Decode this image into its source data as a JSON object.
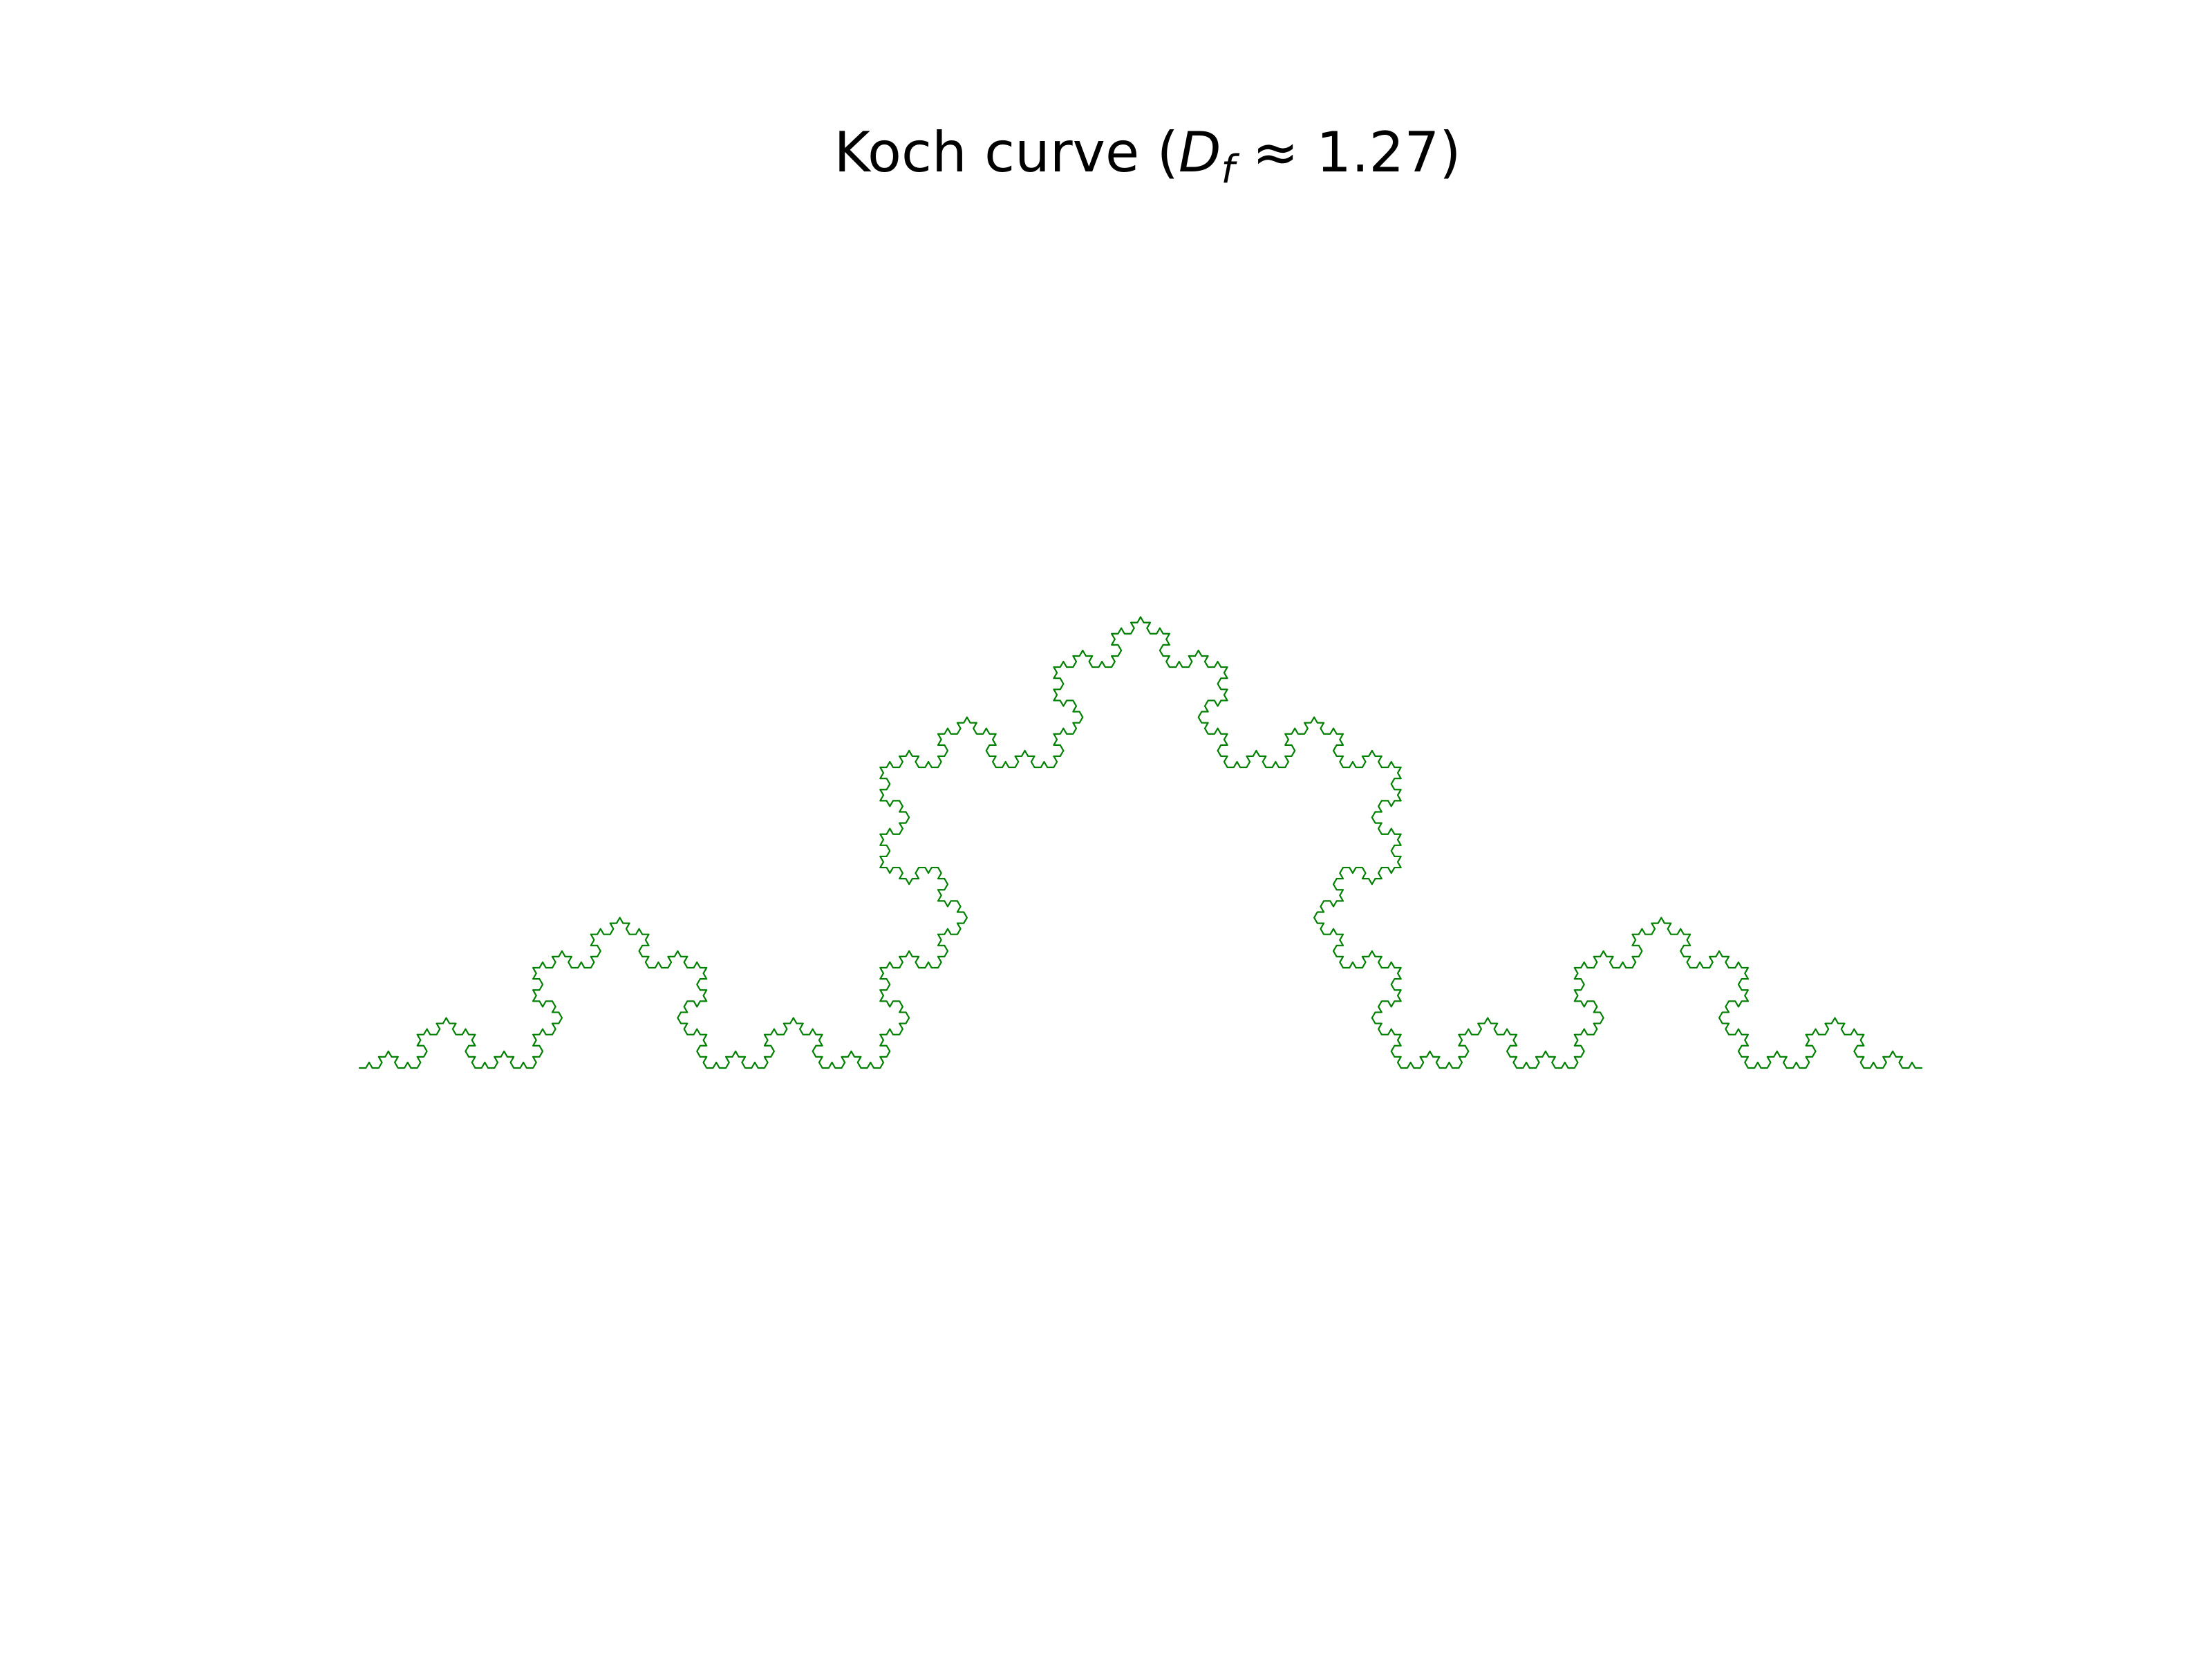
{
  "figure": {
    "title": {
      "prefix": "Koch curve (",
      "symbol": "D",
      "subscript": "f",
      "relation": " ≈ 1.27)"
    },
    "curve": {
      "name": "Koch curve",
      "iterations": 5,
      "color": "#008000",
      "endpoints": [
        [
          0,
          0
        ],
        [
          1,
          0
        ]
      ],
      "fractal_dimension_approx": 1.27
    },
    "axes_visible": false
  }
}
